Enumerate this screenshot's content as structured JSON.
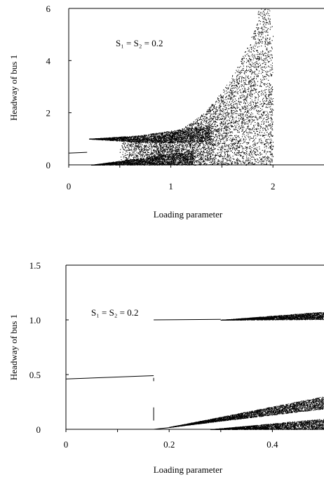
{
  "chart_data": [
    {
      "type": "scatter",
      "title": "",
      "xlabel": "Loading parameter",
      "ylabel": "Headway of bus 1",
      "xlim": [
        0,
        2.5
      ],
      "ylim": [
        0,
        6
      ],
      "xticks": [
        0,
        1,
        2
      ],
      "yticks": [
        0,
        2,
        4,
        6
      ],
      "x_tick_labels": [
        "0",
        "1",
        "2"
      ],
      "y_tick_labels": [
        "0",
        "2",
        "4",
        "6"
      ],
      "annotation": "S₁ = S₂ = 0.2",
      "grid": false,
      "legend": "none",
      "series": [
        {
          "values": [
            {
              "x": 0.0,
              "y": 0.45
            },
            {
              "x": 0.18,
              "y": 0.48
            },
            {
              "x": 0.2,
              "y": 1.0
            },
            {
              "x": 0.5,
              "y": 1.0
            },
            {
              "x": 0.8,
              "y": 1.1
            },
            {
              "x": 1.0,
              "y": 1.3
            },
            {
              "x": 1.2,
              "y": 1.6
            },
            {
              "x": 1.4,
              "y": 2.0
            },
            {
              "x": 1.6,
              "y": 2.8
            },
            {
              "x": 1.8,
              "y": 4.3
            },
            {
              "x": 1.9,
              "y": 6.0
            },
            {
              "x": 2.0,
              "y": 3.0
            }
          ]
        }
      ]
    },
    {
      "type": "scatter",
      "title": "",
      "xlabel": "Loading parameter",
      "ylabel": "Headway of bus 1",
      "xlim": [
        0,
        0.5
      ],
      "ylim": [
        0,
        1.5
      ],
      "xticks": [
        0,
        0.2,
        0.4
      ],
      "yticks": [
        0,
        0.5,
        1.0,
        1.5
      ],
      "x_tick_labels": [
        "0",
        "0.2",
        "0.4"
      ],
      "y_tick_labels": [
        "0",
        "0.5",
        "1.0",
        "1.5"
      ],
      "annotation": "S₁ = S₂ = 0.2",
      "grid": false,
      "legend": "none",
      "series": [
        {
          "values": [
            {
              "x": 0.0,
              "y": 0.46
            },
            {
              "x": 0.17,
              "y": 0.49
            },
            {
              "x": 0.17,
              "y": 1.0
            },
            {
              "x": 0.3,
              "y": 1.01
            },
            {
              "x": 0.5,
              "y": 1.05
            },
            {
              "x": 0.2,
              "y": 0.03
            },
            {
              "x": 0.5,
              "y": 0.28
            },
            {
              "x": 0.3,
              "y": 0.0
            },
            {
              "x": 0.5,
              "y": 0.1
            }
          ]
        }
      ]
    }
  ]
}
